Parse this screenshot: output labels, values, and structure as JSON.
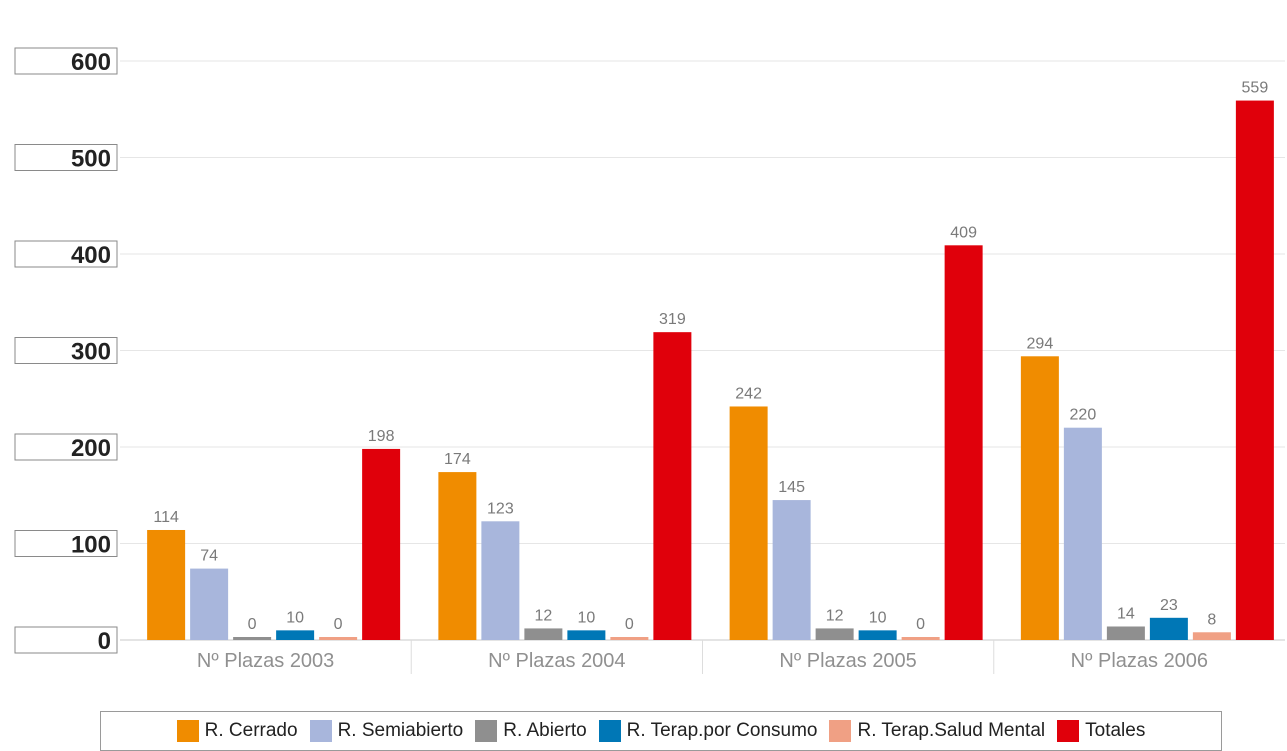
{
  "chart_data": {
    "type": "bar",
    "categories": [
      "Nº Plazas 2003",
      "Nº Plazas 2004",
      "Nº Plazas 2005",
      "Nº Plazas 2006"
    ],
    "series": [
      {
        "name": "R. Cerrado",
        "color": "#f08c00",
        "values": [
          114,
          174,
          242,
          294
        ]
      },
      {
        "name": "R. Semiabierto",
        "color": "#a8b6dc",
        "values": [
          74,
          123,
          145,
          220
        ]
      },
      {
        "name": "R. Abierto",
        "color": "#8f8f8f",
        "values": [
          0,
          12,
          12,
          14
        ]
      },
      {
        "name": "R. Terap.por Consumo",
        "color": "#0077b6",
        "values": [
          10,
          10,
          10,
          23
        ]
      },
      {
        "name": "R. Terap.Salud Mental",
        "color": "#f0a084",
        "values": [
          0,
          0,
          0,
          8
        ]
      },
      {
        "name": "Totales",
        "color": "#e0000b",
        "values": [
          198,
          319,
          409,
          559
        ]
      }
    ],
    "ylim": [
      0,
      600
    ],
    "yticks": [
      0,
      100,
      200,
      300,
      400,
      500,
      600
    ],
    "grid": true,
    "legend_position": "bottom",
    "data_labels": true
  }
}
